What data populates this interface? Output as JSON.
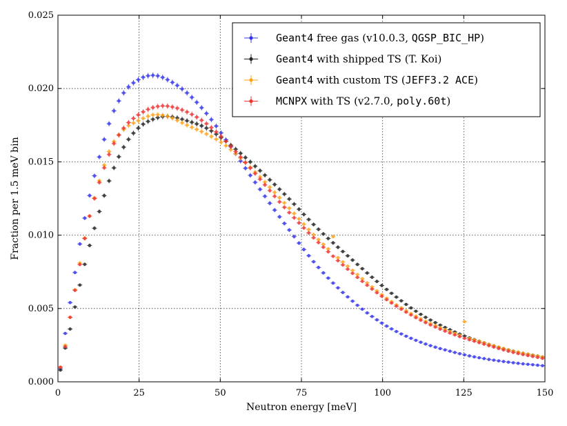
{
  "chart_data": {
    "type": "scatter",
    "title": "",
    "xlabel": "Neutron energy [meV]",
    "ylabel": "Fraction per 1.5 meV bin",
    "xlim": [
      0,
      150
    ],
    "ylim": [
      0,
      0.025
    ],
    "xticks": [
      0,
      25,
      50,
      75,
      100,
      125,
      150
    ],
    "yticks": [
      0.0,
      0.005,
      0.01,
      0.015,
      0.02,
      0.025
    ],
    "xtick_labels": [
      "0",
      "25",
      "50",
      "75",
      "100",
      "125",
      "150"
    ],
    "ytick_labels": [
      "0.000",
      "0.005",
      "0.010",
      "0.015",
      "0.020",
      "0.025"
    ],
    "grid": true,
    "legend_position": "top-right",
    "bin_width": 1.5,
    "series": [
      {
        "name_parts": [
          "Geant4",
          " free gas (v10.0.3, ",
          "QGSP_BIC_HP",
          ")"
        ],
        "name_mono": [
          true,
          false,
          true,
          false
        ],
        "color": "#3333ee",
        "anchors": [
          [
            0.75,
            0.0009
          ],
          [
            2.25,
            0.0033
          ],
          [
            3.75,
            0.0054
          ],
          [
            6.75,
            0.0094
          ],
          [
            9.75,
            0.0127
          ],
          [
            15.75,
            0.0176
          ],
          [
            20.25,
            0.0197
          ],
          [
            24.75,
            0.0206
          ],
          [
            29.25,
            0.0209
          ],
          [
            33.75,
            0.0206
          ],
          [
            39.75,
            0.0197
          ],
          [
            45.75,
            0.0183
          ],
          [
            51.75,
            0.0165
          ],
          [
            60.75,
            0.0136
          ],
          [
            69.75,
            0.0108
          ],
          [
            80.25,
            0.0078
          ],
          [
            90.75,
            0.0055
          ],
          [
            101.25,
            0.0038
          ],
          [
            111.75,
            0.0027
          ],
          [
            122.25,
            0.002
          ],
          [
            130.75,
            0.0016
          ],
          [
            140.25,
            0.0013
          ],
          [
            149.25,
            0.0011
          ]
        ]
      },
      {
        "name_parts": [
          "Geant4",
          " with shipped TS (T. Koi)"
        ],
        "name_mono": [
          true,
          false
        ],
        "color": "#222222",
        "anchors": [
          [
            0.75,
            0.0008
          ],
          [
            2.25,
            0.0023
          ],
          [
            3.75,
            0.0036
          ],
          [
            6.75,
            0.0066
          ],
          [
            9.75,
            0.0093
          ],
          [
            15.75,
            0.0137
          ],
          [
            20.25,
            0.016
          ],
          [
            24.75,
            0.0173
          ],
          [
            29.25,
            0.0179
          ],
          [
            33.75,
            0.0181
          ],
          [
            39.75,
            0.0178
          ],
          [
            45.75,
            0.0173
          ],
          [
            51.75,
            0.0164
          ],
          [
            60.75,
            0.0147
          ],
          [
            69.75,
            0.0128
          ],
          [
            80.25,
            0.0104
          ],
          [
            90.75,
            0.0083
          ],
          [
            101.25,
            0.0063
          ],
          [
            111.75,
            0.0046
          ],
          [
            122.25,
            0.0034
          ],
          [
            130.75,
            0.0027
          ],
          [
            140.25,
            0.0021
          ],
          [
            149.25,
            0.0017
          ]
        ]
      },
      {
        "name_parts": [
          "Geant4",
          " with custom TS (",
          "JEFF3.2 ACE",
          ")"
        ],
        "name_mono": [
          true,
          false,
          true,
          false
        ],
        "color": "#ffa31a",
        "anchors": [
          [
            0.75,
            0.001
          ],
          [
            2.25,
            0.0025
          ],
          [
            3.75,
            0.0044
          ],
          [
            6.75,
            0.0081
          ],
          [
            9.75,
            0.0113
          ],
          [
            15.75,
            0.0157
          ],
          [
            20.25,
            0.0172
          ],
          [
            24.75,
            0.0178
          ],
          [
            29.25,
            0.0182
          ],
          [
            33.75,
            0.0181
          ],
          [
            39.75,
            0.0175
          ],
          [
            45.75,
            0.0169
          ],
          [
            51.75,
            0.0161
          ],
          [
            60.75,
            0.0143
          ],
          [
            69.75,
            0.0122
          ],
          [
            80.25,
            0.0097
          ],
          [
            90.75,
            0.0076
          ],
          [
            101.25,
            0.0057
          ],
          [
            111.75,
            0.0043
          ],
          [
            122.25,
            0.0033
          ],
          [
            130.75,
            0.0027
          ],
          [
            140.25,
            0.0021
          ],
          [
            149.25,
            0.0017
          ]
        ],
        "spikes": [
          [
            84.75,
            0.0099
          ],
          [
            125.25,
            0.0041
          ]
        ]
      },
      {
        "name_parts": [
          "MCNPX",
          " with TS (v2.7.0, ",
          "poly.60t",
          ")"
        ],
        "name_mono": [
          true,
          false,
          true,
          false
        ],
        "color": "#ee3333",
        "anchors": [
          [
            0.75,
            0.001
          ],
          [
            2.25,
            0.0024
          ],
          [
            3.75,
            0.0044
          ],
          [
            6.75,
            0.008
          ],
          [
            9.75,
            0.0113
          ],
          [
            15.75,
            0.0155
          ],
          [
            20.25,
            0.0173
          ],
          [
            24.75,
            0.0182
          ],
          [
            29.25,
            0.0187
          ],
          [
            33.75,
            0.0188
          ],
          [
            39.75,
            0.0184
          ],
          [
            45.75,
            0.0176
          ],
          [
            51.75,
            0.0164
          ],
          [
            60.75,
            0.0142
          ],
          [
            69.75,
            0.0119
          ],
          [
            80.25,
            0.0095
          ],
          [
            90.75,
            0.0074
          ],
          [
            101.25,
            0.0056
          ],
          [
            111.75,
            0.0042
          ],
          [
            122.25,
            0.0032
          ],
          [
            130.75,
            0.0026
          ],
          [
            140.25,
            0.002
          ],
          [
            149.25,
            0.0016
          ]
        ]
      }
    ]
  }
}
